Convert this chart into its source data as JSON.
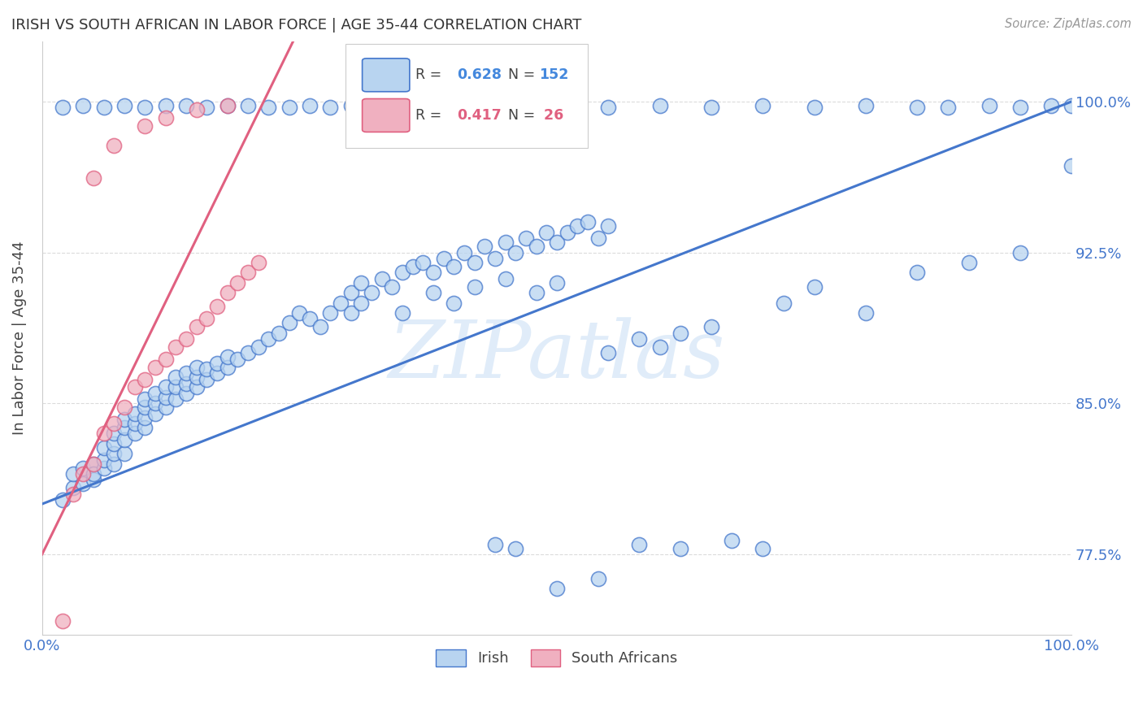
{
  "title": "IRISH VS SOUTH AFRICAN IN LABOR FORCE | AGE 35-44 CORRELATION CHART",
  "source": "Source: ZipAtlas.com",
  "ylabel": "In Labor Force | Age 35-44",
  "watermark": "ZIPatlas",
  "xmin": 0.0,
  "xmax": 1.0,
  "ymin": 0.735,
  "ymax": 1.03,
  "yticks": [
    0.775,
    0.85,
    0.925,
    1.0
  ],
  "ytick_labels": [
    "77.5%",
    "85.0%",
    "92.5%",
    "100.0%"
  ],
  "xtick_labels": [
    "0.0%",
    "100.0%"
  ],
  "irish_R": 0.628,
  "irish_N": 152,
  "sa_R": 0.417,
  "sa_N": 26,
  "irish_color": "#b8d4f0",
  "sa_color": "#f0b0c0",
  "irish_line_color": "#4477cc",
  "sa_line_color": "#e06080",
  "title_color": "#333333",
  "axis_label_color": "#444444",
  "tick_label_color": "#4477cc",
  "legend_r_color_irish": "#4488dd",
  "legend_r_color_sa": "#e06080",
  "grid_color": "#cccccc",
  "background_color": "#ffffff",
  "irish_line_start_y": 0.8,
  "irish_line_end_y": 1.0,
  "sa_line_start_x": 0.0,
  "sa_line_start_y": 0.775,
  "sa_line_end_x": 0.22,
  "sa_line_end_y": 1.005
}
